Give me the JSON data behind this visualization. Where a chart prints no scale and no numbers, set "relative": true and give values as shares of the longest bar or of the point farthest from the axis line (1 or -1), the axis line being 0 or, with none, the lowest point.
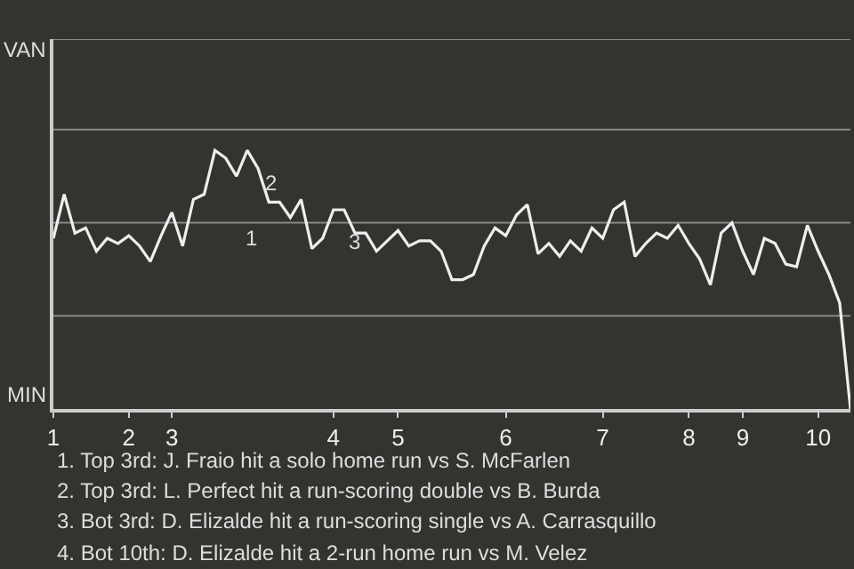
{
  "chart_data": {
    "type": "line",
    "relative": true,
    "categories": [
      "1",
      null,
      null,
      null,
      null,
      null,
      null,
      "2",
      null,
      null,
      null,
      "3",
      null,
      null,
      null,
      null,
      null,
      null,
      null,
      null,
      null,
      null,
      null,
      null,
      null,
      null,
      "4",
      null,
      null,
      null,
      null,
      null,
      "5",
      null,
      null,
      null,
      null,
      null,
      null,
      null,
      null,
      null,
      "6",
      null,
      null,
      null,
      null,
      null,
      null,
      null,
      null,
      "7",
      null,
      null,
      null,
      null,
      null,
      null,
      null,
      "8",
      null,
      null,
      null,
      null,
      "9",
      null,
      null,
      null,
      null,
      null,
      null,
      "10",
      null,
      null,
      null
    ],
    "series": [
      {
        "color": "#eeeeee",
        "values": [
          0.66,
          0.83,
          0.68,
          0.7,
          0.61,
          0.66,
          0.64,
          0.67,
          0.63,
          0.57,
          0.67,
          0.76,
          0.63,
          0.81,
          0.83,
          1,
          0.97,
          0.9,
          1,
          0.93,
          0.8,
          0.8,
          0.74,
          0.81,
          0.62,
          0.66,
          0.77,
          0.77,
          0.68,
          0.68,
          0.61,
          0.65,
          0.69,
          0.63,
          0.65,
          0.65,
          0.61,
          0.5,
          0.5,
          0.52,
          0.63,
          0.7,
          0.67,
          0.75,
          0.79,
          0.6,
          0.64,
          0.59,
          0.65,
          0.61,
          0.7,
          0.66,
          0.77,
          0.8,
          0.59,
          0.64,
          0.68,
          0.66,
          0.71,
          0.64,
          0.58,
          0.48,
          0.68,
          0.72,
          0.61,
          0.52,
          0.66,
          0.64,
          0.56,
          0.55,
          0.71,
          0.61,
          0.52,
          0.41,
          0
        ]
      }
    ],
    "grid": false,
    "ref_lines": [
      {
        "axis": "y",
        "value": 0.36,
        "color": "#888888"
      },
      {
        "axis": "y",
        "value": 0.72,
        "color": "#888888"
      },
      {
        "axis": "y",
        "value": 1.08,
        "color": "#888888"
      },
      {
        "axis": "y",
        "value": 1.43,
        "color": "#888888"
      }
    ],
    "marker": "none",
    "line_style": "solid",
    "annotations": [
      "VAN",
      "MIN",
      "1",
      "2",
      "3",
      "1. Top 3rd: J. Fraio hit a solo home run vs S. McFarlen",
      "2. Top 3rd: L. Perfect hit a run-scoring double vs B. Burda",
      "3. Bot 3rd: D. Elizalde hit a run-scoring single vs A. Carrasquillo",
      "4. Bot 10th: D. Elizalde hit a 2-run home run vs M. Velez"
    ]
  }
}
